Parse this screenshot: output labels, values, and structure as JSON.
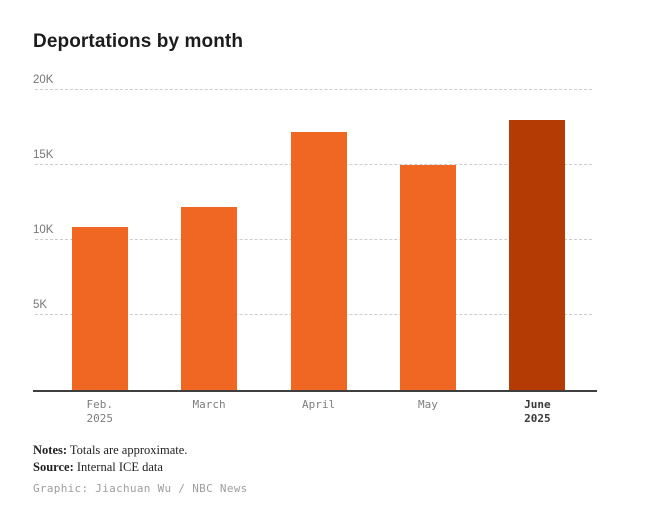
{
  "title": "Deportations by month",
  "colors": {
    "bar": "#f06623",
    "bar_highlight": "#b43b04",
    "grid": "#cdcdcd",
    "axis": "#3f3f3f",
    "ytick": "#767676",
    "xlabel": "#7d7d7d",
    "xlabel_highlight": "#3a3a3a",
    "title_color": "#1c1c1c",
    "credit": "#9d9d9d"
  },
  "chart_data": {
    "type": "bar",
    "title": "Deportations by month",
    "categories": [
      [
        "Feb.",
        "2025"
      ],
      [
        "March"
      ],
      [
        "April"
      ],
      [
        "May"
      ],
      [
        "June",
        "2025"
      ]
    ],
    "values": [
      10900,
      12200,
      17200,
      15000,
      18000
    ],
    "highlight_index": 4,
    "yticks": [
      5000,
      10000,
      15000,
      20000
    ],
    "ytick_labels": [
      "5K",
      "10K",
      "15K",
      "20K"
    ],
    "ylim": [
      0,
      20000
    ],
    "xlabel": "",
    "ylabel": "",
    "grid": "horizontal-dashed",
    "legend": "none"
  },
  "footer": {
    "notes_label": "Notes:",
    "notes_text": " Totals are approximate.",
    "source_label": "Source:",
    "source_text": " Internal ICE data",
    "credit": "Graphic: Jiachuan Wu / NBC News"
  }
}
